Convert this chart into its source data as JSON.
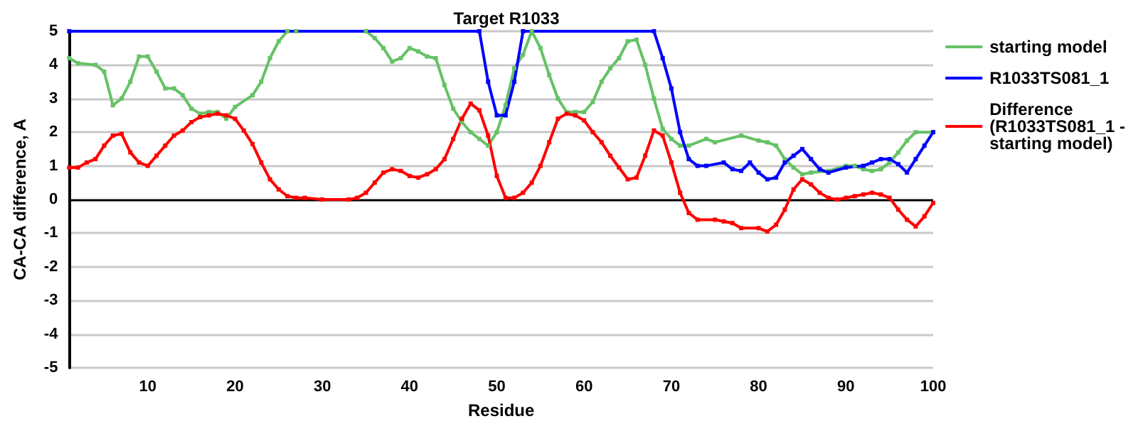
{
  "chart_data": {
    "type": "line",
    "title": "Target R1033",
    "xlabel": "Residue",
    "ylabel": "CA-CA difference, A",
    "xlim": [
      1,
      100
    ],
    "xticks": [
      10,
      20,
      30,
      40,
      50,
      60,
      70,
      80,
      90,
      100
    ],
    "ylim": [
      -5,
      5
    ],
    "yticks": [
      -5,
      -4,
      -3,
      -2,
      -1,
      0,
      1,
      2,
      3,
      4,
      5
    ],
    "grid": "y",
    "legend": "right",
    "marker": "square",
    "line_style": "solid",
    "series": [
      {
        "name": "starting model",
        "color": "#66c266",
        "x": [
          1,
          2,
          4,
          5,
          6,
          7,
          8,
          9,
          10,
          11,
          12,
          13,
          14,
          15,
          16,
          17,
          18,
          19,
          20,
          22,
          23,
          24,
          25,
          26,
          27,
          35,
          36,
          37,
          38,
          39,
          40,
          41,
          42,
          43,
          44,
          45,
          46,
          47,
          48,
          49,
          50,
          51,
          52,
          53,
          54,
          55,
          56,
          57,
          58,
          59,
          60,
          61,
          62,
          63,
          64,
          65,
          66,
          67,
          68,
          69,
          70,
          71,
          72,
          74,
          75,
          78,
          80,
          81,
          82,
          83,
          84,
          85,
          86,
          88,
          90,
          91,
          92,
          93,
          94,
          95,
          96,
          97,
          98,
          100
        ],
        "values": [
          4.2,
          4.05,
          4.0,
          3.8,
          2.8,
          3.0,
          3.5,
          4.25,
          4.25,
          3.8,
          3.3,
          3.3,
          3.1,
          2.7,
          2.55,
          2.6,
          2.6,
          2.4,
          2.75,
          3.1,
          3.5,
          4.2,
          4.7,
          5,
          5,
          5,
          4.8,
          4.5,
          4.1,
          4.2,
          4.5,
          4.4,
          4.25,
          4.2,
          3.4,
          2.7,
          2.3,
          2.0,
          1.8,
          1.6,
          2.0,
          2.8,
          3.9,
          4.3,
          5.0,
          4.5,
          3.7,
          3.0,
          2.6,
          2.6,
          2.6,
          2.9,
          3.5,
          3.9,
          4.2,
          4.7,
          4.75,
          4.0,
          3.0,
          2.1,
          1.8,
          1.6,
          1.6,
          1.8,
          1.7,
          1.9,
          1.75,
          1.7,
          1.6,
          1.2,
          0.95,
          0.75,
          0.8,
          0.85,
          1.0,
          1.0,
          0.9,
          0.85,
          0.9,
          1.1,
          1.4,
          1.75,
          2.0,
          2.0
        ]
      },
      {
        "name": "R1033TS081_1",
        "color": "#0000ff",
        "x": [
          1,
          48,
          49,
          50,
          51,
          52,
          53,
          68,
          69,
          70,
          71,
          72,
          73,
          74,
          76,
          77,
          78,
          79,
          80,
          81,
          82,
          83,
          84,
          85,
          86,
          87,
          88,
          90,
          92,
          93,
          94,
          95,
          96,
          97,
          98,
          99,
          100
        ],
        "values": [
          5,
          5,
          3.5,
          2.5,
          2.5,
          3.5,
          5,
          5,
          4.2,
          3.3,
          2.0,
          1.2,
          1.0,
          1.0,
          1.1,
          0.9,
          0.85,
          1.1,
          0.8,
          0.6,
          0.65,
          1.1,
          1.3,
          1.5,
          1.2,
          0.9,
          0.8,
          0.95,
          1.0,
          1.1,
          1.2,
          1.2,
          1.05,
          0.8,
          1.2,
          1.6,
          2.0
        ]
      },
      {
        "name": "Difference\n(R1033TS081_1 -\nstarting model)",
        "color": "#ff0000",
        "x": [
          1,
          2,
          3,
          4,
          5,
          6,
          7,
          8,
          9,
          10,
          11,
          12,
          13,
          14,
          15,
          16,
          17,
          18,
          19,
          20,
          21,
          22,
          23,
          24,
          25,
          26,
          27,
          28,
          30,
          33,
          34,
          35,
          36,
          37,
          38,
          39,
          40,
          41,
          42,
          43,
          44,
          45,
          46,
          47,
          48,
          49,
          50,
          51,
          52,
          53,
          54,
          55,
          56,
          57,
          58,
          59,
          60,
          61,
          62,
          63,
          64,
          65,
          66,
          67,
          68,
          69,
          70,
          71,
          72,
          73,
          75,
          76,
          77,
          78,
          80,
          81,
          82,
          83,
          84,
          85,
          86,
          87,
          88,
          89,
          90,
          91,
          92,
          93,
          94,
          95,
          96,
          97,
          98,
          99,
          100
        ],
        "values": [
          0.95,
          0.95,
          1.1,
          1.2,
          1.6,
          1.9,
          1.95,
          1.4,
          1.1,
          1.0,
          1.3,
          1.6,
          1.9,
          2.05,
          2.3,
          2.45,
          2.5,
          2.55,
          2.5,
          2.4,
          2.05,
          1.65,
          1.1,
          0.6,
          0.3,
          0.1,
          0.05,
          0.05,
          0,
          0,
          0.05,
          0.2,
          0.5,
          0.8,
          0.9,
          0.85,
          0.7,
          0.65,
          0.75,
          0.9,
          1.2,
          1.8,
          2.4,
          2.85,
          2.65,
          1.9,
          0.7,
          0.05,
          0.05,
          0.2,
          0.5,
          1.0,
          1.7,
          2.4,
          2.55,
          2.5,
          2.35,
          2.0,
          1.7,
          1.3,
          0.95,
          0.6,
          0.65,
          1.3,
          2.05,
          1.9,
          1.1,
          0.2,
          -0.4,
          -0.6,
          -0.6,
          -0.65,
          -0.7,
          -0.85,
          -0.85,
          -0.95,
          -0.75,
          -0.3,
          0.3,
          0.6,
          0.45,
          0.2,
          0.05,
          0,
          0.05,
          0.1,
          0.15,
          0.2,
          0.15,
          0.05,
          -0.3,
          -0.6,
          -0.8,
          -0.5,
          -0.1
        ]
      }
    ]
  }
}
